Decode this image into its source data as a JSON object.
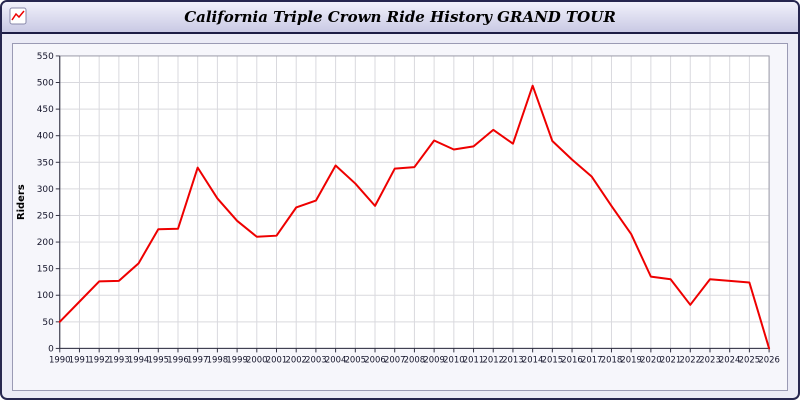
{
  "window": {
    "title": "California Triple Crown Ride History GRAND TOUR",
    "icon": "line-chart-icon"
  },
  "chart_data": {
    "type": "line",
    "title": "California Triple Crown Ride History GRAND TOUR",
    "xlabel": "",
    "ylabel": "Riders",
    "ylim": [
      0,
      550
    ],
    "ytick_step": 50,
    "grid": true,
    "legend": "none",
    "line_color": "#ee0000",
    "plot_bg": "#ffffff",
    "grid_color": "#d9d9de",
    "x": [
      1990,
      1991,
      1992,
      1993,
      1994,
      1995,
      1996,
      1997,
      1998,
      1999,
      2000,
      2001,
      2002,
      2003,
      2004,
      2005,
      2006,
      2007,
      2008,
      2009,
      2010,
      2011,
      2012,
      2013,
      2014,
      2015,
      2016,
      2017,
      2018,
      2019,
      2020,
      2021,
      2022,
      2023,
      2024,
      2025,
      2026
    ],
    "series": [
      {
        "name": "Riders",
        "color": "#ee0000",
        "values": [
          50,
          88,
          126,
          127,
          160,
          224,
          225,
          340,
          282,
          240,
          210,
          212,
          265,
          278,
          344,
          310,
          268,
          338,
          341,
          391,
          374,
          380,
          411,
          385,
          494,
          390,
          355,
          323,
          268,
          215,
          135,
          130,
          82,
          130,
          127,
          124,
          0
        ]
      }
    ]
  }
}
